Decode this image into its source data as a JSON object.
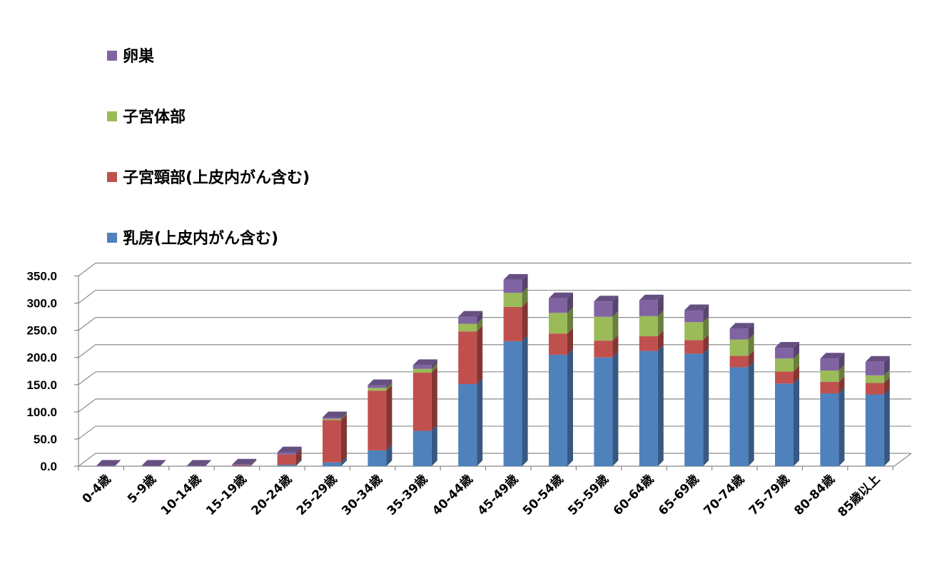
{
  "chart_data": {
    "type": "bar",
    "stacked": true,
    "three_d": true,
    "categories": [
      "0-4歳",
      "5-9歳",
      "10-14歳",
      "15-19歳",
      "20-24歳",
      "25-29歳",
      "30-34歳",
      "35-39歳",
      "40-44歳",
      "45-49歳",
      "50-54歳",
      "55-59歳",
      "60-64歳",
      "65-69歳",
      "70-74歳",
      "75-79歳",
      "80-84歳",
      "85歳以上"
    ],
    "series": [
      {
        "name": "乳房(上皮内がん含む)",
        "color": "#4F81BD",
        "values": [
          0,
          0,
          0,
          0.3,
          2.5,
          7,
          29,
          65,
          151,
          230,
          205,
          200,
          212,
          207,
          182,
          152,
          134,
          132
        ]
      },
      {
        "name": "子宮頸部(上皮内がん含む)",
        "color": "#C0504D",
        "values": [
          0,
          0,
          0,
          1.5,
          19,
          78,
          110,
          107,
          97,
          63,
          39,
          31,
          27,
          25,
          21,
          22,
          21,
          21
        ]
      },
      {
        "name": "子宮体部",
        "color": "#9BBB59",
        "values": [
          0,
          0,
          0,
          0,
          0,
          2,
          5,
          7,
          14,
          26,
          38,
          44,
          37,
          33,
          30,
          24,
          21,
          14
        ]
      },
      {
        "name": "卵巣",
        "color": "#8064A2",
        "values": [
          0.3,
          0.3,
          0.5,
          1.2,
          4,
          3,
          5,
          7,
          13,
          24,
          27,
          28,
          29,
          22,
          20,
          20,
          22,
          25
        ]
      }
    ],
    "legend_order": [
      "卵巣",
      "子宮体部",
      "子宮頸部(上皮内がん含む)",
      "乳房(上皮内がん含む)"
    ],
    "yticks": [
      "0.0",
      "50.0",
      "100.0",
      "150.0",
      "200.0",
      "250.0",
      "300.0",
      "350.0"
    ],
    "ylim": [
      0,
      350
    ],
    "grid": true,
    "legend_position": "top-left",
    "title": "",
    "xlabel": "",
    "ylabel": ""
  }
}
